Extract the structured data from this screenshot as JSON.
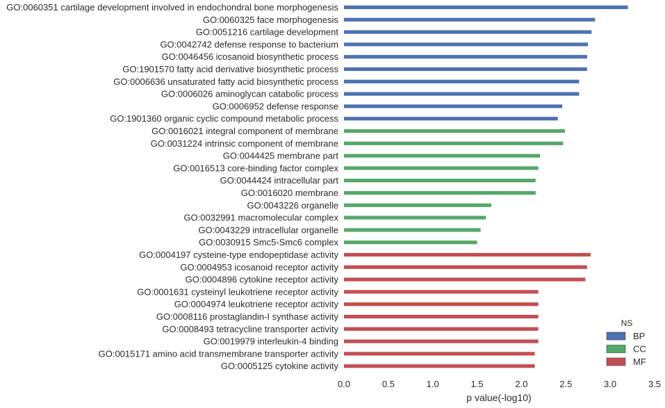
{
  "chart_data": {
    "type": "bar",
    "orientation": "horizontal",
    "xlabel": "p value(-log10)",
    "xlim": [
      0,
      3.5
    ],
    "xticks": [
      "0.0",
      "0.5",
      "1.0",
      "1.5",
      "2.0",
      "2.5",
      "3.0",
      "3.5"
    ],
    "grid": false,
    "legend": {
      "title": "NS",
      "placement": "bottom-right",
      "entries": [
        {
          "name": "BP",
          "color": "#4c72b0"
        },
        {
          "name": "CC",
          "color": "#55a868"
        },
        {
          "name": "MF",
          "color": "#c44e52"
        }
      ]
    },
    "categories": [
      {
        "label": "GO:0060351 cartilage development involved in endochondral bone morphogenesis",
        "value": 3.2,
        "ns": "BP"
      },
      {
        "label": "GO:0060325 face morphogenesis",
        "value": 2.83,
        "ns": "BP"
      },
      {
        "label": "GO:0051216 cartilage development",
        "value": 2.79,
        "ns": "BP"
      },
      {
        "label": "GO:0042742 defense response to bacterium",
        "value": 2.75,
        "ns": "BP"
      },
      {
        "label": "GO:0046456 icosanoid biosynthetic process",
        "value": 2.74,
        "ns": "BP"
      },
      {
        "label": "GO:1901570 fatty acid derivative biosynthetic process",
        "value": 2.74,
        "ns": "BP"
      },
      {
        "label": "GO:0006636 unsaturated fatty acid biosynthetic process",
        "value": 2.65,
        "ns": "BP"
      },
      {
        "label": "GO:0006026 aminoglycan catabolic process",
        "value": 2.65,
        "ns": "BP"
      },
      {
        "label": "GO:0006952 defense response",
        "value": 2.46,
        "ns": "BP"
      },
      {
        "label": "GO:1901360 organic cyclic compound metabolic process",
        "value": 2.41,
        "ns": "BP"
      },
      {
        "label": "GO:0016021 integral component of membrane",
        "value": 2.49,
        "ns": "CC"
      },
      {
        "label": "GO:0031224 intrinsic component of membrane",
        "value": 2.47,
        "ns": "CC"
      },
      {
        "label": "GO:0044425 membrane part",
        "value": 2.21,
        "ns": "CC"
      },
      {
        "label": "GO:0016513 core-binding factor complex",
        "value": 2.19,
        "ns": "CC"
      },
      {
        "label": "GO:0044424 intracellular part",
        "value": 2.16,
        "ns": "CC"
      },
      {
        "label": "GO:0016020 membrane",
        "value": 2.16,
        "ns": "CC"
      },
      {
        "label": "GO:0043226 organelle",
        "value": 1.66,
        "ns": "CC"
      },
      {
        "label": "GO:0032991 macromolecular complex",
        "value": 1.6,
        "ns": "CC"
      },
      {
        "label": "GO:0043229 intracellular organelle",
        "value": 1.54,
        "ns": "CC"
      },
      {
        "label": "GO:0030915 Smc5-Smc6 complex",
        "value": 1.5,
        "ns": "CC"
      },
      {
        "label": "GO:0004197 cysteine-type endopeptidase activity",
        "value": 2.78,
        "ns": "MF"
      },
      {
        "label": "GO:0004953 icosanoid receptor activity",
        "value": 2.74,
        "ns": "MF"
      },
      {
        "label": "GO:0004896 cytokine receptor activity",
        "value": 2.72,
        "ns": "MF"
      },
      {
        "label": "GO:0001631 cysteinyl leukotriene receptor activity",
        "value": 2.19,
        "ns": "MF"
      },
      {
        "label": "GO:0004974 leukotriene receptor activity",
        "value": 2.19,
        "ns": "MF"
      },
      {
        "label": "GO:0008116 prostaglandin-I synthase activity",
        "value": 2.19,
        "ns": "MF"
      },
      {
        "label": "GO:0008493 tetracycline transporter activity",
        "value": 2.19,
        "ns": "MF"
      },
      {
        "label": "GO:0019979 interleukin-4 binding",
        "value": 2.19,
        "ns": "MF"
      },
      {
        "label": "GO:0015171 amino acid transmembrane transporter activity",
        "value": 2.15,
        "ns": "MF"
      },
      {
        "label": "GO:0005125 cytokine activity",
        "value": 2.15,
        "ns": "MF"
      }
    ]
  }
}
